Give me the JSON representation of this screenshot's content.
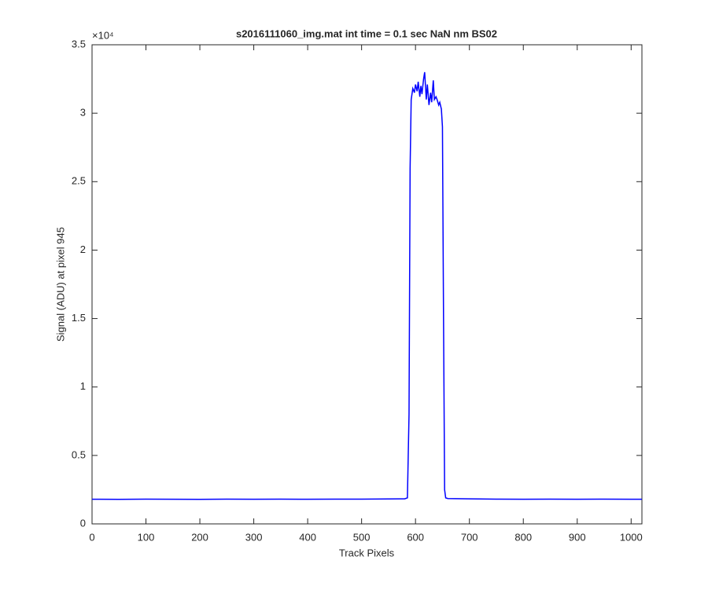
{
  "chart_data": {
    "type": "line",
    "title": "s2016111060_img.mat int time = 0.1 sec  NaN nm BS02",
    "x_label": "Track Pixels",
    "y_label": "Signal (ADU) at pixel 945",
    "y_exponent_label": "×10⁴",
    "xlim": [
      0,
      1020
    ],
    "xticks": [
      0,
      100,
      200,
      300,
      400,
      500,
      600,
      700,
      800,
      900,
      1000
    ],
    "ylim": [
      0,
      35000
    ],
    "yticks": [
      {
        "value": 0,
        "label": "0"
      },
      {
        "value": 5000,
        "label": "0.5"
      },
      {
        "value": 10000,
        "label": "1"
      },
      {
        "value": 15000,
        "label": "1.5"
      },
      {
        "value": 20000,
        "label": "2"
      },
      {
        "value": 25000,
        "label": "2.5"
      },
      {
        "value": 30000,
        "label": "3"
      },
      {
        "value": 35000,
        "label": "3.5"
      }
    ],
    "grid": false,
    "series": [
      {
        "color": "#0000ff",
        "x": [
          0,
          50,
          100,
          150,
          200,
          250,
          300,
          350,
          400,
          450,
          500,
          550,
          580,
          585,
          588,
          590,
          592,
          595,
          598,
          600,
          603,
          605,
          608,
          610,
          612,
          615,
          617,
          620,
          622,
          625,
          628,
          630,
          633,
          635,
          638,
          640,
          643,
          645,
          648,
          650,
          652,
          654,
          656,
          660,
          700,
          750,
          800,
          850,
          900,
          950,
          1000,
          1020
        ],
        "values": [
          1800,
          1790,
          1810,
          1800,
          1795,
          1805,
          1800,
          1810,
          1800,
          1805,
          1810,
          1820,
          1830,
          1900,
          8000,
          26000,
          31000,
          31800,
          31500,
          32100,
          31600,
          32300,
          31200,
          32000,
          31400,
          32500,
          33000,
          31000,
          32100,
          30600,
          31500,
          30800,
          32400,
          31000,
          31200,
          31000,
          30600,
          30800,
          30300,
          29000,
          15000,
          2500,
          1900,
          1850,
          1830,
          1810,
          1800,
          1810,
          1800,
          1805,
          1800,
          1800
        ]
      }
    ]
  }
}
